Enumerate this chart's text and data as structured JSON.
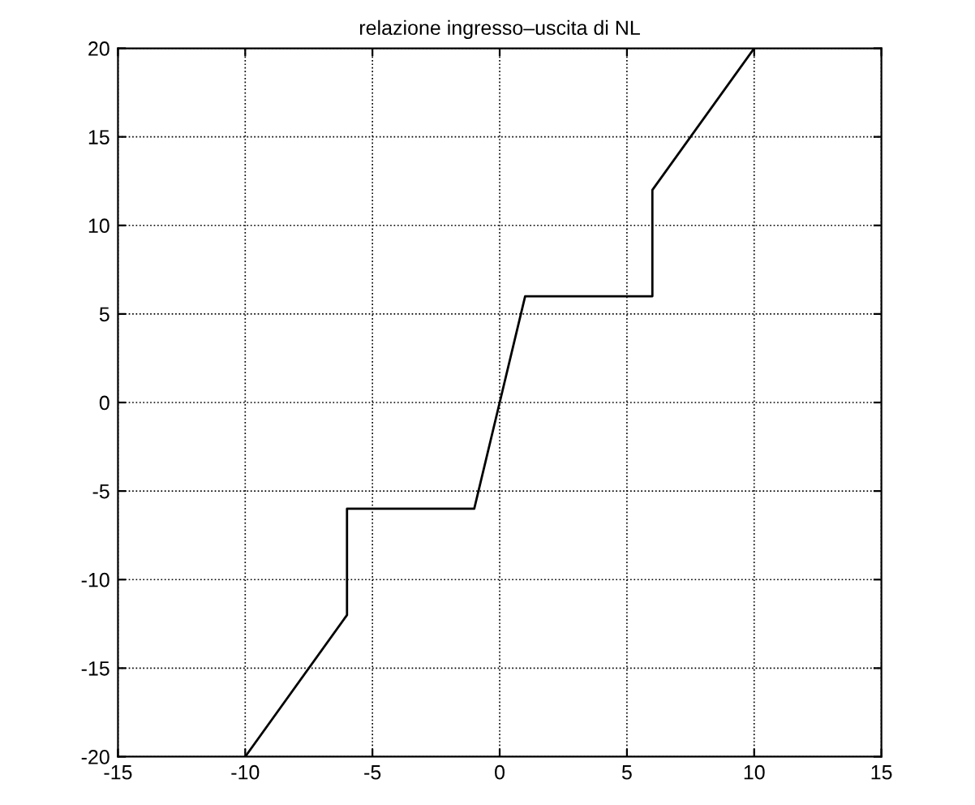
{
  "chart_data": {
    "type": "line",
    "title": "relazione ingresso–uscita di NL",
    "x": [
      -10,
      -6,
      -6,
      -1,
      1,
      6,
      6,
      10
    ],
    "series": [
      {
        "color": "#000000",
        "values": [
          -20,
          -12,
          -6,
          -6,
          6,
          6,
          12,
          20
        ]
      }
    ],
    "xlim": [
      -15,
      15
    ],
    "xticks": [
      -15,
      -10,
      -5,
      0,
      5,
      10,
      15
    ],
    "ylim": [
      -20,
      20
    ],
    "yticks": [
      -20,
      -15,
      -10,
      -5,
      0,
      5,
      10,
      15,
      20
    ],
    "grid": true,
    "line_style": "solid"
  }
}
